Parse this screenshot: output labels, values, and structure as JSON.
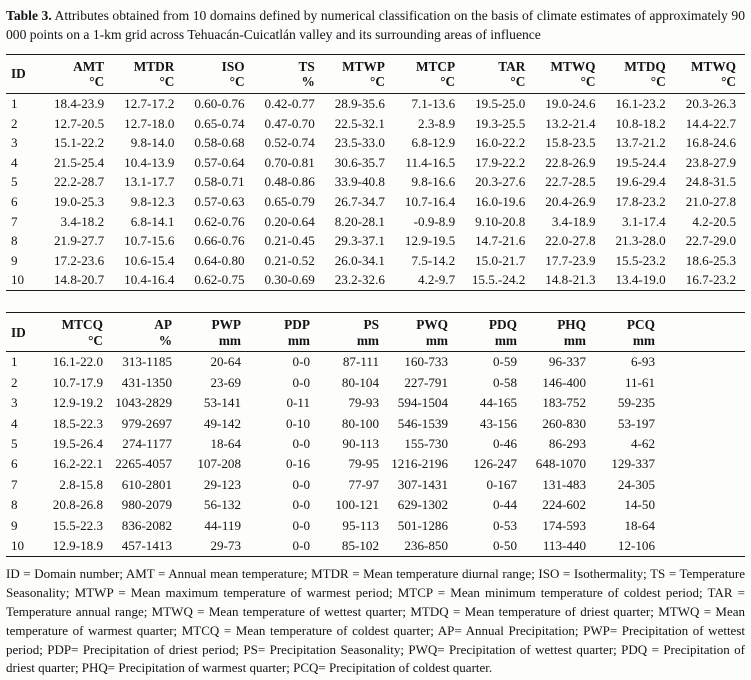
{
  "caption": {
    "label": "Table 3.",
    "text": "Attributes obtained from 10 domains defined by numerical classification on the basis of climate estimates of approximately 90 000 points on a 1-km grid across Tehuacán-Cuicatlán valley and its surrounding areas of influence"
  },
  "tables": [
    {
      "name": "temperature-attributes-table",
      "columns": [
        {
          "abbr": "ID",
          "unit": ""
        },
        {
          "abbr": "AMT",
          "unit": "°C"
        },
        {
          "abbr": "MTDR",
          "unit": "°C"
        },
        {
          "abbr": "ISO",
          "unit": "°C"
        },
        {
          "abbr": "TS",
          "unit": "%"
        },
        {
          "abbr": "MTWP",
          "unit": "°C"
        },
        {
          "abbr": "MTCP",
          "unit": "°C"
        },
        {
          "abbr": "TAR",
          "unit": "°C"
        },
        {
          "abbr": "MTWQ",
          "unit": "°C"
        },
        {
          "abbr": "MTDQ",
          "unit": "°C"
        },
        {
          "abbr": "MTWQ",
          "unit": "°C"
        }
      ],
      "filler": false,
      "rows": [
        [
          "1",
          "18.4-23.9",
          "12.7-17.2",
          "0.60-0.76",
          "0.42-0.77",
          "28.9-35.6",
          "7.1-13.6",
          "19.5-25.0",
          "19.0-24.6",
          "16.1-23.2",
          "20.3-26.3"
        ],
        [
          "2",
          "12.7-20.5",
          "12.7-18.0",
          "0.65-0.74",
          "0.47-0.70",
          "22.5-32.1",
          "2.3-8.9",
          "19.3-25.5",
          "13.2-21.4",
          "10.8-18.2",
          "14.4-22.7"
        ],
        [
          "3",
          "15.1-22.2",
          "9.8-14.0",
          "0.58-0.68",
          "0.52-0.74",
          "23.5-33.0",
          "6.8-12.9",
          "16.0-22.2",
          "15.8-23.5",
          "13.7-21.2",
          "16.8-24.6"
        ],
        [
          "4",
          "21.5-25.4",
          "10.4-13.9",
          "0.57-0.64",
          "0.70-0.81",
          "30.6-35.7",
          "11.4-16.5",
          "17.9-22.2",
          "22.8-26.9",
          "19.5-24.4",
          "23.8-27.9"
        ],
        [
          "5",
          "22.2-28.7",
          "13.1-17.7",
          "0.58-0.71",
          "0.48-0.86",
          "33.9-40.8",
          "9.8-16.6",
          "20.3-27.6",
          "22.7-28.5",
          "19.6-29.4",
          "24.8-31.5"
        ],
        [
          "6",
          "19.0-25.3",
          "9.8-12.3",
          "0.57-0.63",
          "0.65-0.79",
          "26.7-34.7",
          "10.7-16.4",
          "16.0-19.6",
          "20.4-26.9",
          "17.8-23.2",
          "21.0-27.8"
        ],
        [
          "7",
          "3.4-18.2",
          "6.8-14.1",
          "0.62-0.76",
          "0.20-0.64",
          "8.20-28.1",
          "-0.9-8.9",
          "9.10-20.8",
          "3.4-18.9",
          "3.1-17.4",
          "4.2-20.5"
        ],
        [
          "8",
          "21.9-27.7",
          "10.7-15.6",
          "0.66-0.76",
          "0.21-0.45",
          "29.3-37.1",
          "12.9-19.5",
          "14.7-21.6",
          "22.0-27.8",
          "21.3-28.0",
          "22.7-29.0"
        ],
        [
          "9",
          "17.2-23.6",
          "10.6-15.4",
          "0.64-0.80",
          "0.21-0.52",
          "26.0-34.1",
          "7.5-14.2",
          "15.0-21.7",
          "17.7-23.9",
          "15.5-23.2",
          "18.6-25.3"
        ],
        [
          "10",
          "14.8-20.7",
          "10.4-16.4",
          "0.62-0.75",
          "0.30-0.69",
          "23.2-32.6",
          "4.2-9.7",
          "15.5.-24.2",
          "14.8-21.3",
          "13.4-19.0",
          "16.7-23.2"
        ]
      ]
    },
    {
      "name": "precipitation-attributes-table",
      "columns": [
        {
          "abbr": "ID",
          "unit": ""
        },
        {
          "abbr": "MTCQ",
          "unit": "°C"
        },
        {
          "abbr": "AP",
          "unit": "%"
        },
        {
          "abbr": "PWP",
          "unit": "mm"
        },
        {
          "abbr": "PDP",
          "unit": "mm"
        },
        {
          "abbr": "PS",
          "unit": "mm"
        },
        {
          "abbr": "PWQ",
          "unit": "mm"
        },
        {
          "abbr": "PDQ",
          "unit": "mm"
        },
        {
          "abbr": "PHQ",
          "unit": "mm"
        },
        {
          "abbr": "PCQ",
          "unit": "mm"
        }
      ],
      "filler": true,
      "rows": [
        [
          "1",
          "16.1-22.0",
          "313-1185",
          "20-64",
          "0-0",
          "87-111",
          "160-733",
          "0-59",
          "96-337",
          "6-93"
        ],
        [
          "2",
          "10.7-17.9",
          "431-1350",
          "23-69",
          "0-0",
          "80-104",
          "227-791",
          "0-58",
          "146-400",
          "11-61"
        ],
        [
          "3",
          "12.9-19.2",
          "1043-2829",
          "53-141",
          "0-11",
          "79-93",
          "594-1504",
          "44-165",
          "183-752",
          "59-235"
        ],
        [
          "4",
          "18.5-22.3",
          "979-2697",
          "49-142",
          "0-10",
          "80-100",
          "546-1539",
          "43-156",
          "260-830",
          "53-197"
        ],
        [
          "5",
          "19.5-26.4",
          "274-1177",
          "18-64",
          "0-0",
          "90-113",
          "155-730",
          "0-46",
          "86-293",
          "4-62"
        ],
        [
          "6",
          "16.2-22.1",
          "2265-4057",
          "107-208",
          "0-16",
          "79-95",
          "1216-2196",
          "126-247",
          "648-1070",
          "129-337"
        ],
        [
          "7",
          "2.8-15.8",
          "610-2801",
          "29-123",
          "0-0",
          "77-97",
          "307-1431",
          "0-167",
          "131-483",
          "24-305"
        ],
        [
          "8",
          "20.8-26.8",
          "980-2079",
          "56-132",
          "0-0",
          "100-121",
          "629-1302",
          "0-44",
          "224-602",
          "14-50"
        ],
        [
          "9",
          "15.5-22.3",
          "836-2082",
          "44-119",
          "0-0",
          "95-113",
          "501-1286",
          "0-53",
          "174-593",
          "18-64"
        ],
        [
          "10",
          "12.9-18.9",
          "457-1413",
          "29-73",
          "0-0",
          "85-102",
          "236-850",
          "0-50",
          "113-440",
          "12-106"
        ]
      ]
    }
  ],
  "footnote": {
    "text": "ID = Domain number; AMT = Annual mean temperature; MTDR = Mean temperature diurnal range; ISO = Isothermality; TS = Temperature Seasonality; MTWP = Mean maximum temperature of warmest period; MTCP = Mean minimum temperature of coldest period; TAR = Temperature annual range; MTWQ = Mean temperature of wettest quarter; MTDQ = Mean temperature of driest quarter; MTWQ = Mean temperature of warmest quarter; MTCQ = Mean temperature of coldest quarter; AP= Annual Precipitation; PWP= Precipitation of wettest period; PDP= Precipitation of driest period; PS= Precipitation Seasonality; PWQ= Precipitation of wettest quarter; PDQ = Precipitation of driest quarter; PHQ= Precipitation of warmest quarter; PCQ= Precipitation of coldest quarter."
  }
}
